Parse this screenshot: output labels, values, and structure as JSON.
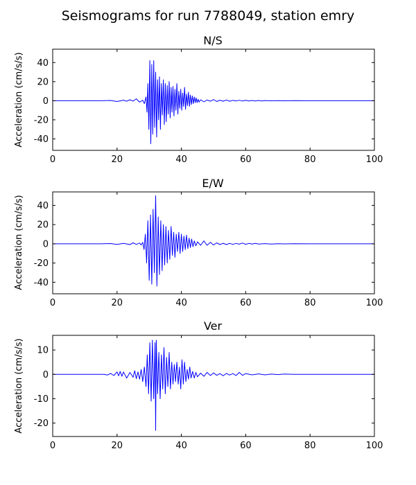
{
  "figure": {
    "title": "Seismograms for run 7788049, station emry"
  },
  "chart_data": [
    {
      "type": "line",
      "title": "N/S",
      "xlabel": "",
      "ylabel": "Acceleration (cm/s/s)",
      "xlim": [
        0,
        100
      ],
      "ylim": [
        -52,
        54
      ],
      "xticks": [
        0,
        20,
        40,
        60,
        80,
        100
      ],
      "yticks": [
        -40,
        -20,
        0,
        20,
        40
      ],
      "line_color": "#0000ff",
      "x": [
        0,
        10,
        15,
        18,
        20,
        22,
        23,
        24,
        25,
        26,
        27,
        28,
        28.5,
        29,
        29.3,
        29.6,
        29.9,
        30.2,
        30.5,
        30.8,
        31.1,
        31.4,
        31.7,
        32.0,
        32.3,
        32.6,
        32.9,
        33.2,
        33.5,
        33.8,
        34.1,
        34.4,
        34.7,
        35.0,
        35.3,
        35.6,
        35.9,
        36.2,
        36.5,
        36.8,
        37.1,
        37.4,
        37.7,
        38.0,
        38.3,
        38.6,
        38.9,
        39.2,
        39.5,
        39.8,
        40.1,
        40.4,
        40.7,
        41.0,
        41.3,
        41.6,
        41.9,
        42.2,
        42.5,
        42.8,
        43.1,
        43.4,
        43.7,
        44.0,
        44.3,
        44.6,
        44.9,
        45.2,
        45.5,
        46,
        47,
        48,
        49,
        50,
        51,
        52,
        53,
        54,
        55,
        56,
        57,
        58,
        59,
        60,
        61,
        62,
        63,
        64,
        65,
        66,
        68,
        70,
        72,
        75,
        80,
        90,
        100
      ],
      "values": [
        0,
        0,
        0,
        0.3,
        -0.8,
        0.6,
        -0.5,
        1.0,
        -0.4,
        2.0,
        -1.5,
        0.5,
        -3.0,
        4.0,
        -12,
        18,
        -30,
        42,
        -45,
        38,
        -35,
        42,
        -28,
        30,
        -38,
        22,
        -20,
        25,
        -30,
        18,
        -15,
        22,
        -25,
        18,
        -22,
        16,
        -14,
        20,
        -18,
        14,
        -12,
        15,
        -16,
        12,
        -10,
        18,
        -14,
        10,
        -8,
        12,
        -10,
        8,
        -6,
        14,
        -9,
        7,
        -5,
        9,
        -6,
        6,
        -4,
        5,
        -3,
        4,
        -2,
        3,
        -2,
        1.5,
        -1.5,
        1.0,
        -1.2,
        0.8,
        -0.5,
        1.2,
        -0.8,
        0.6,
        -0.5,
        0.8,
        -0.5,
        0.4,
        -0.3,
        0.5,
        -0.3,
        0.4,
        -0.2,
        0.3,
        -0.2,
        0.3,
        -0.2,
        0.2,
        -0.1,
        0.1,
        -0.1,
        0.1,
        0,
        0,
        0
      ]
    },
    {
      "type": "line",
      "title": "E/W",
      "xlabel": "",
      "ylabel": "Acceleration (cm/s/s)",
      "xlim": [
        0,
        100
      ],
      "ylim": [
        -52,
        54
      ],
      "xticks": [
        0,
        20,
        40,
        60,
        80,
        100
      ],
      "yticks": [
        -40,
        -20,
        0,
        20,
        40
      ],
      "line_color": "#0000ff",
      "x": [
        0,
        10,
        15,
        18,
        20,
        22,
        24,
        25,
        26,
        27,
        27.5,
        28,
        28.4,
        28.8,
        29.2,
        29.6,
        30.0,
        30.4,
        30.8,
        31.2,
        31.6,
        32.0,
        32.4,
        32.8,
        33.2,
        33.6,
        34.0,
        34.4,
        34.8,
        35.2,
        35.6,
        36.0,
        36.4,
        36.8,
        37.2,
        37.6,
        38.0,
        38.4,
        38.8,
        39.2,
        39.6,
        40.0,
        40.4,
        40.8,
        41.2,
        41.6,
        42.0,
        42.4,
        42.8,
        43.2,
        43.6,
        44.0,
        44.5,
        45,
        46,
        47,
        48,
        49,
        50,
        51,
        52,
        53,
        54,
        55,
        56,
        57,
        58,
        59,
        60,
        61,
        62,
        63,
        64,
        66,
        68,
        70,
        72,
        75,
        80,
        90,
        100
      ],
      "values": [
        0,
        0,
        0,
        0.3,
        -0.6,
        0.5,
        -0.8,
        1.0,
        -0.6,
        0.8,
        -1.2,
        1.5,
        -6,
        10,
        -20,
        24,
        -38,
        30,
        -42,
        36,
        -30,
        50,
        -44,
        28,
        -32,
        24,
        -28,
        20,
        -22,
        18,
        -20,
        14,
        -16,
        18,
        -12,
        12,
        -14,
        10,
        -8,
        12,
        -10,
        10,
        -8,
        8,
        -6,
        9,
        -5,
        6,
        -4,
        5,
        -3,
        3,
        -2,
        2,
        -1.5,
        3.0,
        -1.5,
        1.5,
        -1.2,
        1.0,
        -0.8,
        0.6,
        -0.8,
        0.5,
        -0.6,
        0.4,
        -0.4,
        0.8,
        -0.5,
        0.4,
        -0.3,
        0.4,
        -0.3,
        0.2,
        -0.2,
        0.1,
        -0.1,
        0.1,
        0,
        0,
        0
      ]
    },
    {
      "type": "line",
      "title": "Ver",
      "xlabel": "",
      "ylabel": "Acceleration (cm/s/s)",
      "xlim": [
        0,
        100
      ],
      "ylim": [
        -25.5,
        16
      ],
      "xticks": [
        0,
        20,
        40,
        60,
        80,
        100
      ],
      "yticks": [
        -20,
        -10,
        0,
        10
      ],
      "line_color": "#0000ff",
      "x": [
        0,
        10,
        16,
        17,
        18,
        19,
        20,
        20.5,
        21,
        21.5,
        22,
        23,
        24,
        25,
        25.5,
        26,
        26.5,
        27,
        27.5,
        28,
        28.5,
        29,
        29.4,
        29.8,
        30.2,
        30.6,
        31.0,
        31.4,
        31.8,
        32.0,
        32.2,
        32.6,
        33.0,
        33.4,
        33.8,
        34.2,
        34.6,
        35.0,
        35.4,
        35.8,
        36.2,
        36.6,
        37.0,
        37.4,
        37.8,
        38.2,
        38.6,
        39.0,
        39.4,
        39.8,
        40.2,
        40.6,
        41.0,
        41.4,
        41.8,
        42.2,
        42.6,
        43.0,
        43.5,
        44,
        44.5,
        45,
        46,
        47,
        48,
        49,
        50,
        51,
        52,
        53,
        54,
        55,
        56,
        57,
        58,
        59,
        60,
        62,
        64,
        66,
        68,
        70,
        72,
        75,
        80,
        90,
        100
      ],
      "values": [
        0,
        0,
        0,
        -0.3,
        0.4,
        -0.5,
        1.0,
        -0.6,
        1.2,
        -0.8,
        1.0,
        -1.5,
        0.8,
        -1.2,
        1.5,
        -1.8,
        1.0,
        -2.0,
        2.0,
        -3.0,
        3.0,
        -5,
        8,
        -8,
        13,
        -11,
        14,
        -10,
        13,
        -23,
        14,
        -8,
        9,
        -10,
        8,
        -6,
        11,
        -8,
        7,
        -5,
        9,
        -6,
        5,
        -4,
        4,
        -3,
        5,
        -4,
        3,
        -6,
        6,
        -4,
        5,
        -3,
        2,
        -2,
        3,
        -1.5,
        1.2,
        -1.5,
        0.8,
        -1.0,
        0.5,
        -0.8,
        0.8,
        -0.5,
        0.6,
        -0.4,
        0.3,
        -0.6,
        0.4,
        -0.3,
        0.3,
        -0.5,
        0.8,
        -0.4,
        0.3,
        -0.2,
        0.2,
        -0.2,
        0.1,
        -0.1,
        0.1,
        0,
        0,
        0,
        0
      ]
    }
  ]
}
